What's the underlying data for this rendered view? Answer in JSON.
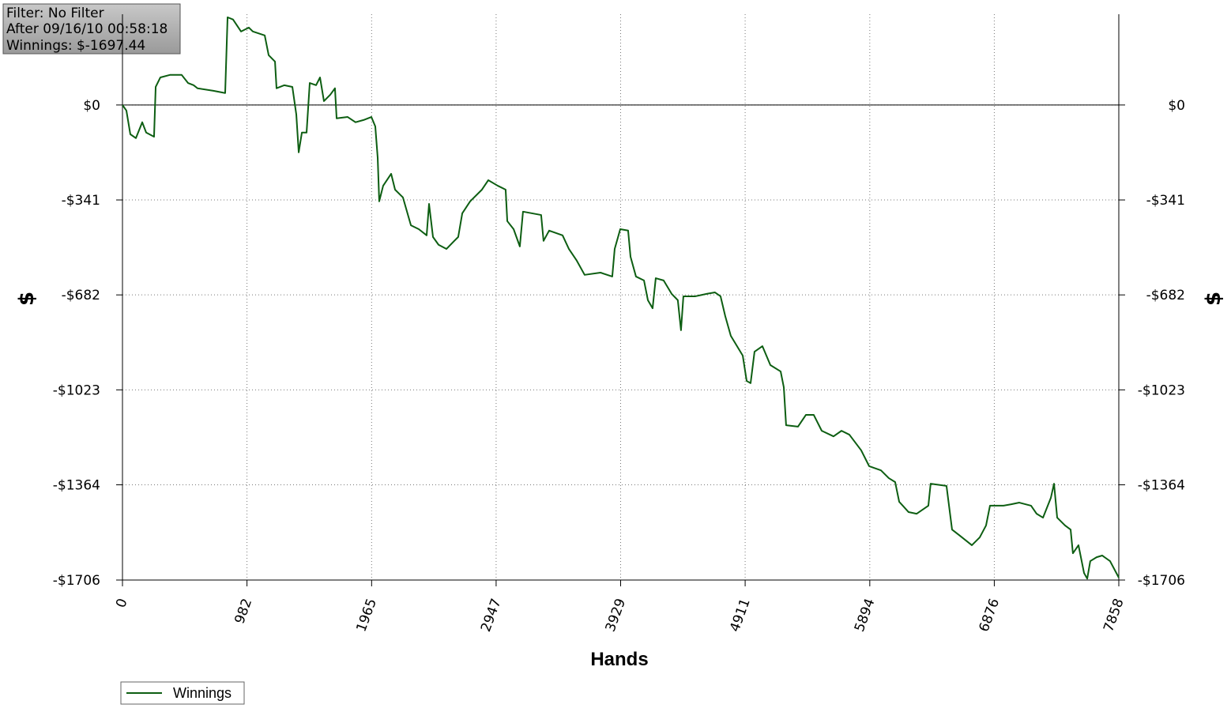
{
  "chart_data": {
    "type": "line",
    "annotations": [
      "Filter: No Filter",
      "After 09/16/10 00:58:18",
      "Winnings: $-1697.44"
    ],
    "x_label": "Hands",
    "y_label": "$",
    "xlim": [
      0,
      7858
    ],
    "xticks": [
      0,
      982,
      1965,
      2947,
      3929,
      4911,
      5894,
      6876,
      7858
    ],
    "ylim": [
      -1706,
      326
    ],
    "yticks": [
      {
        "value": 0,
        "label": "$0"
      },
      {
        "value": -341,
        "label": "-$341"
      },
      {
        "value": -682,
        "label": "-$682"
      },
      {
        "value": -1023,
        "label": "-$1023"
      },
      {
        "value": -1364,
        "label": "-$1364"
      },
      {
        "value": -1706,
        "label": "-$1706"
      }
    ],
    "grid": true,
    "legend": "bottom-left",
    "x": [
      0,
      31,
      62,
      106,
      156,
      187,
      249,
      262,
      299,
      374,
      467,
      517,
      561,
      592,
      717,
      810,
      829,
      872,
      935,
      997,
      1028,
      1122,
      1153,
      1203,
      1215,
      1277,
      1340,
      1371,
      1390,
      1415,
      1452,
      1477,
      1527,
      1558,
      1589,
      1639,
      1676,
      1689,
      1776,
      1838,
      1901,
      1963,
      1994,
      2013,
      2025,
      2056,
      2119,
      2150,
      2212,
      2275,
      2337,
      2399,
      2418,
      2449,
      2493,
      2555,
      2617,
      2648,
      2680,
      2742,
      2835,
      2885,
      2960,
      3022,
      3035,
      3085,
      3134,
      3159,
      3302,
      3321,
      3365,
      3471,
      3521,
      3583,
      3645,
      3770,
      3863,
      3882,
      3926,
      3988,
      4007,
      4050,
      4113,
      4144,
      4181,
      4206,
      4268,
      4331,
      4380,
      4405,
      4424,
      4518,
      4611,
      4673,
      4717,
      4754,
      4798,
      4892,
      4923,
      4954,
      4985,
      5047,
      5110,
      5191,
      5216,
      5234,
      5328,
      5390,
      5452,
      5515,
      5608,
      5671,
      5733,
      5826,
      5889,
      5982,
      6044,
      6094,
      6126,
      6200,
      6263,
      6356,
      6374,
      6499,
      6543,
      6605,
      6699,
      6761,
      6811,
      6842,
      6948,
      7010,
      7073,
      7166,
      7210,
      7260,
      7322,
      7347,
      7372,
      7434,
      7478,
      7496,
      7540,
      7584,
      7609,
      7633,
      7683,
      7727,
      7789,
      7858
    ],
    "series": [
      {
        "name": "Winnings",
        "color": "#0d5e12",
        "values": [
          0,
          -20,
          -105,
          -119,
          -62,
          -99,
          -114,
          65,
          99,
          108,
          108,
          79,
          71,
          60,
          51,
          43,
          315,
          307,
          264,
          278,
          264,
          250,
          179,
          156,
          60,
          71,
          65,
          -34,
          -170,
          -99,
          -99,
          79,
          71,
          99,
          14,
          37,
          60,
          -48,
          -43,
          -62,
          -54,
          -43,
          -77,
          -190,
          -346,
          -290,
          -247,
          -304,
          -332,
          -432,
          -446,
          -468,
          -355,
          -474,
          -502,
          -517,
          -488,
          -474,
          -389,
          -346,
          -304,
          -270,
          -290,
          -304,
          -417,
          -446,
          -508,
          -383,
          -395,
          -488,
          -451,
          -468,
          -517,
          -559,
          -610,
          -602,
          -616,
          -517,
          -446,
          -451,
          -545,
          -616,
          -630,
          -701,
          -730,
          -622,
          -630,
          -678,
          -701,
          -809,
          -687,
          -687,
          -678,
          -673,
          -687,
          -758,
          -829,
          -900,
          -991,
          -999,
          -886,
          -866,
          -934,
          -957,
          -1014,
          -1150,
          -1155,
          -1113,
          -1113,
          -1170,
          -1190,
          -1170,
          -1184,
          -1240,
          -1297,
          -1312,
          -1340,
          -1354,
          -1425,
          -1462,
          -1468,
          -1439,
          -1360,
          -1368,
          -1525,
          -1547,
          -1581,
          -1553,
          -1510,
          -1439,
          -1439,
          -1434,
          -1428,
          -1439,
          -1468,
          -1482,
          -1411,
          -1360,
          -1482,
          -1510,
          -1525,
          -1610,
          -1581,
          -1681,
          -1701,
          -1638,
          -1624,
          -1618,
          -1638,
          -1697.44
        ]
      }
    ]
  }
}
